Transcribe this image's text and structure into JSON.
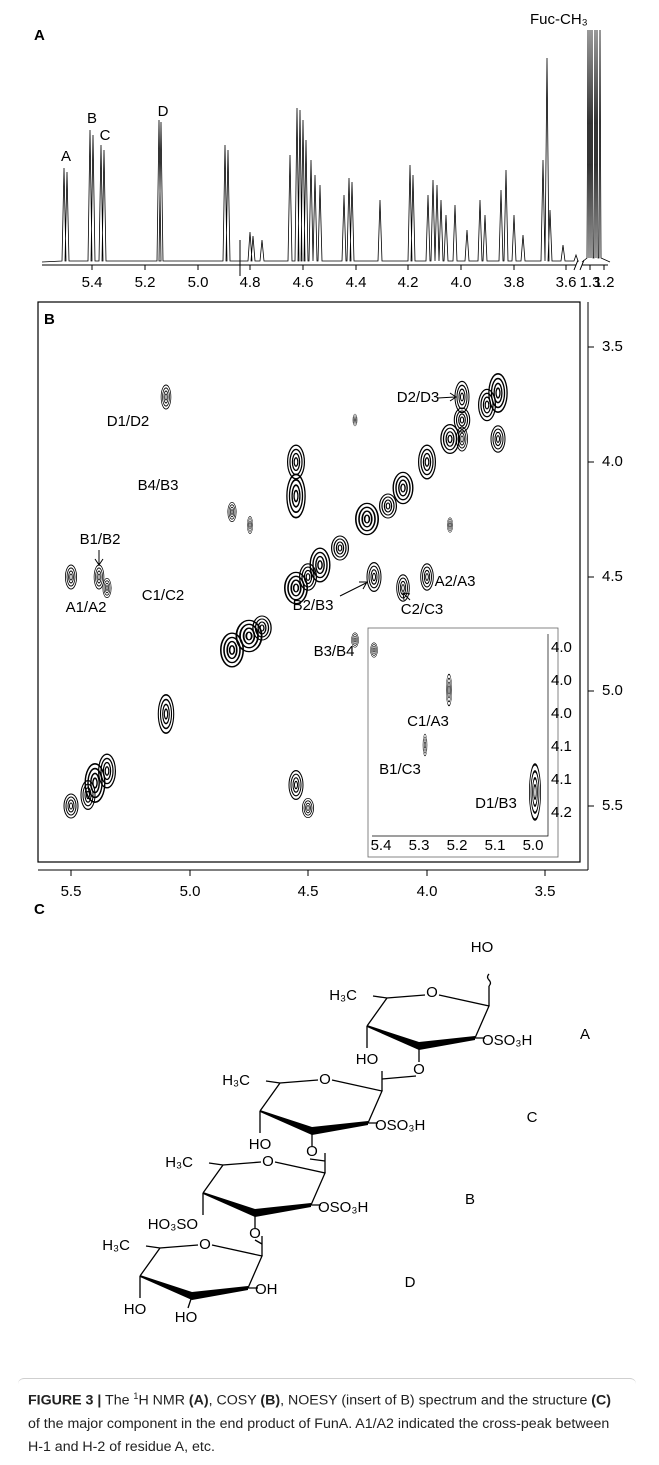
{
  "panel_a": {
    "label": "A",
    "annotation": "Fuc-CH₃",
    "peak_labels": [
      "A",
      "B",
      "C",
      "D"
    ],
    "x_ticks": [
      "5.4",
      "5.2",
      "5.0",
      "4.8",
      "4.6",
      "4.4",
      "4.2",
      "4.0",
      "3.8",
      "3.6",
      "1.3",
      "1.2"
    ]
  },
  "panel_b": {
    "label": "B",
    "x_ticks": [
      "5.5",
      "5.0",
      "4.5",
      "4.0",
      "3.5"
    ],
    "y_ticks": [
      "3.5",
      "4.0",
      "4.5",
      "5.0",
      "5.5"
    ],
    "cross_peaks": [
      "D1/D2",
      "D2/D3",
      "B4/B3",
      "B1/B2",
      "A1/A2",
      "C1/C2",
      "B2/B3",
      "A2/A3",
      "C2/C3",
      "B3/B4"
    ],
    "inset": {
      "labels": [
        "C1/A3",
        "B1/C3",
        "D1/B3"
      ],
      "x_ticks": [
        "5.4",
        "5.3",
        "5.2",
        "5.1",
        "5.0"
      ],
      "y_ticks": [
        "4.0",
        "4.0",
        "4.0",
        "4.1",
        "4.1",
        "4.2"
      ]
    }
  },
  "panel_c": {
    "label": "C",
    "residues": [
      "A",
      "C",
      "B",
      "D"
    ],
    "groups": [
      {
        "text": "HO",
        "color": "#000000"
      },
      {
        "text": "H₃C",
        "color": "#000000"
      },
      {
        "text": "O",
        "color": "#000000"
      },
      {
        "text": "OSO₃H",
        "color": "#e0201b"
      },
      {
        "text": "HO",
        "color": "#000000"
      },
      {
        "text": "O",
        "color": "#000000"
      },
      {
        "text": "H₃C",
        "color": "#000000"
      },
      {
        "text": "O",
        "color": "#000000"
      },
      {
        "text": "OSO₃H",
        "color": "#e0201b"
      },
      {
        "text": "HO",
        "color": "#000000"
      },
      {
        "text": "O",
        "color": "#000000"
      },
      {
        "text": "H₃C",
        "color": "#000000"
      },
      {
        "text": "O",
        "color": "#000000"
      },
      {
        "text": "OSO₃H",
        "color": "#e0201b"
      },
      {
        "text": "HO₃SO",
        "color": "#e0201b"
      },
      {
        "text": "O",
        "color": "#000000"
      },
      {
        "text": "H₃C",
        "color": "#000000"
      },
      {
        "text": "O",
        "color": "#000000"
      },
      {
        "text": "OH",
        "color": "#000000"
      },
      {
        "text": "HO",
        "color": "#000000"
      },
      {
        "text": "HO",
        "color": "#000000"
      }
    ]
  },
  "caption": [
    {
      "text": "FIGURE 3 |",
      "bold": true
    },
    {
      "text": " The "
    },
    {
      "text": "1",
      "sup": true
    },
    {
      "text": "H NMR "
    },
    {
      "text": "(A)",
      "bold": true
    },
    {
      "text": ", COSY "
    },
    {
      "text": "(B)",
      "bold": true
    },
    {
      "text": ", NOESY (insert of B) spectrum and the structure "
    },
    {
      "text": "(C)",
      "bold": true
    },
    {
      "text": " of the major component in the end product of FunA. A1/A2 indicated the cross-peak between H-1 and H-2 of residue A, etc."
    }
  ]
}
